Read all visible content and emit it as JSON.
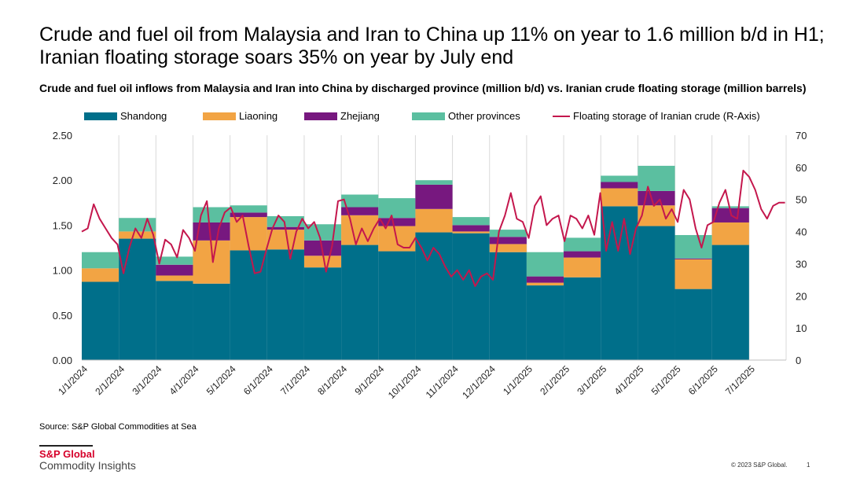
{
  "header": {
    "title": "Crude and fuel oil from Malaysia and Iran to China up 11% on year to 1.6 million b/d in H1; Iranian floating storage soars 35% on year by July end",
    "subtitle": "Crude and fuel oil inflows from Malaysia and Iran into China by discharged province (million b/d) vs. Iranian crude floating storage (million barrels)"
  },
  "chart_data": {
    "type": "bar",
    "stacked": true,
    "categories": [
      "1/1/2024",
      "2/1/2024",
      "3/1/2024",
      "4/1/2024",
      "5/1/2024",
      "6/1/2024",
      "7/1/2024",
      "8/1/2024",
      "9/1/2024",
      "10/1/2024",
      "11/1/2024",
      "12/1/2024",
      "1/1/2025",
      "2/1/2025",
      "3/1/2025",
      "4/1/2025",
      "5/1/2025",
      "6/1/2025",
      "7/1/2025"
    ],
    "series": [
      {
        "name": "Shandong",
        "color": "#006f8a",
        "values": [
          0.87,
          1.35,
          0.88,
          0.85,
          1.22,
          1.23,
          1.03,
          1.28,
          1.21,
          1.42,
          1.41,
          1.2,
          0.83,
          0.92,
          1.71,
          1.49,
          0.79,
          1.28,
          null
        ]
      },
      {
        "name": "Liaoning",
        "color": "#f2a444",
        "values": [
          0.15,
          0.08,
          0.06,
          0.48,
          0.37,
          0.22,
          0.13,
          0.33,
          0.28,
          0.26,
          0.02,
          0.09,
          0.03,
          0.22,
          0.2,
          0.23,
          0.33,
          0.25,
          null
        ]
      },
      {
        "name": "Zhejiang",
        "color": "#77187f",
        "values": [
          0,
          0,
          0.12,
          0.2,
          0.05,
          0.03,
          0.17,
          0.09,
          0.09,
          0.27,
          0.07,
          0.08,
          0.07,
          0.07,
          0.07,
          0.16,
          0.01,
          0.16,
          null
        ]
      },
      {
        "name": "Other provinces",
        "color": "#5bbfa0",
        "values": [
          0.18,
          0.15,
          0.09,
          0.17,
          0.08,
          0.12,
          0.18,
          0.14,
          0.22,
          0.05,
          0.09,
          0.08,
          0.27,
          0.15,
          0.07,
          0.28,
          0.26,
          0.02,
          null
        ]
      }
    ],
    "line_series": {
      "name": "Floating storage of Iranian crude (R-Axis)",
      "color": "#c4174d",
      "start": "1/1/2024",
      "end": "7/31/2025",
      "values": [
        40,
        41,
        48.5,
        44,
        41,
        38,
        36,
        27,
        35,
        41,
        38,
        44,
        39,
        30,
        37.5,
        36,
        32,
        40.5,
        38,
        34,
        45,
        49.5,
        30.5,
        41,
        46,
        47.5,
        43,
        45,
        35.5,
        27,
        27.5,
        34.5,
        41,
        45,
        43,
        31.5,
        40,
        44,
        41,
        43,
        38,
        27.5,
        35.5,
        49.5,
        50,
        44,
        36,
        41,
        37,
        41,
        44,
        41,
        45,
        36,
        35,
        35,
        38,
        35,
        31,
        35,
        33,
        29,
        26,
        28,
        25,
        28,
        23,
        26,
        27,
        25,
        40,
        45,
        52,
        44,
        43,
        38,
        48,
        51,
        42,
        44,
        45,
        37,
        45,
        44,
        41,
        45,
        39,
        52,
        34,
        43,
        34,
        44,
        33,
        41,
        45,
        54,
        48,
        50,
        44,
        47,
        43,
        53,
        50,
        41,
        35,
        42,
        43,
        49,
        53,
        45,
        44,
        59,
        57,
        53,
        47,
        44,
        48,
        49,
        49
      ]
    },
    "y_left": {
      "min": 0,
      "max": 2.5,
      "ticks": [
        "0.00",
        "0.50",
        "1.00",
        "1.50",
        "2.00",
        "2.50"
      ]
    },
    "y_right": {
      "min": 0,
      "max": 70,
      "ticks": [
        "0",
        "10",
        "20",
        "30",
        "40",
        "50",
        "60",
        "70"
      ]
    },
    "legend_placement": "top",
    "grid": "vertical month separators"
  },
  "footer": {
    "source": "Source: S&P Global Commodities at Sea",
    "logo_brand": "S&P Global",
    "logo_sub": "Commodity Insights",
    "copyright": "© 2023 S&P Global.",
    "page_number": "1"
  }
}
